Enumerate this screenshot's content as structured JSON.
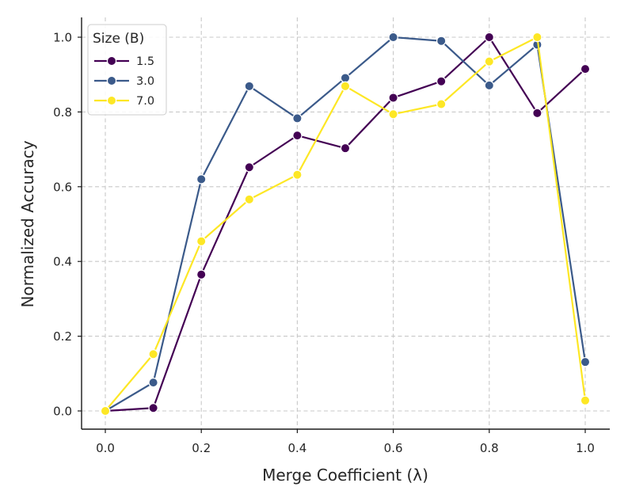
{
  "chart_data": {
    "type": "line",
    "title": "",
    "xlabel": "Merge Coefficient (λ)",
    "ylabel": "Normalized Accuracy",
    "xlim": [
      -0.05,
      1.05
    ],
    "ylim": [
      -0.05,
      1.05
    ],
    "xticks": [
      0.0,
      0.2,
      0.4,
      0.6,
      0.8,
      1.0
    ],
    "xtick_labels": [
      "0.0",
      "0.2",
      "0.4",
      "0.6",
      "0.8",
      "1.0"
    ],
    "yticks": [
      0.0,
      0.2,
      0.4,
      0.6,
      0.8,
      1.0
    ],
    "ytick_labels": [
      "0.0",
      "0.2",
      "0.4",
      "0.6",
      "0.8",
      "1.0"
    ],
    "grid": true,
    "legend": {
      "title": "Size (B)",
      "position": "top-left"
    },
    "x": [
      0.0,
      0.1,
      0.2,
      0.3,
      0.4,
      0.5,
      0.6,
      0.7,
      0.8,
      0.9,
      1.0
    ],
    "series": [
      {
        "name": "1.5",
        "color": "#440154",
        "values": [
          0.0,
          0.008,
          0.365,
          0.652,
          0.737,
          0.703,
          0.838,
          0.882,
          1.0,
          0.797,
          0.915
        ]
      },
      {
        "name": "3.0",
        "color": "#3b5a8a",
        "values": [
          0.0,
          0.076,
          0.62,
          0.869,
          0.783,
          0.891,
          1.0,
          0.99,
          0.871,
          0.98,
          0.131
        ]
      },
      {
        "name": "7.0",
        "color": "#fde725",
        "values": [
          0.0,
          0.152,
          0.454,
          0.566,
          0.632,
          0.869,
          0.794,
          0.821,
          0.935,
          1.0,
          0.028
        ]
      }
    ]
  }
}
